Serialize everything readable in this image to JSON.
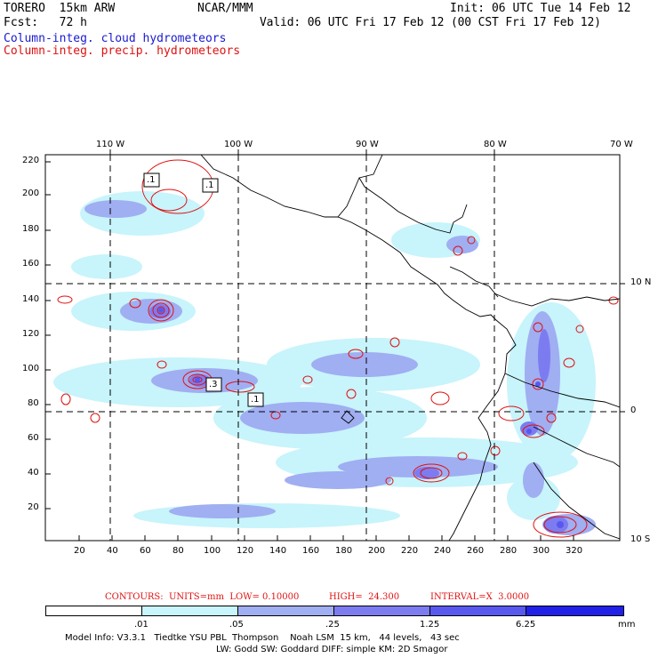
{
  "header": {
    "model": "TORERO  15km ARW",
    "center": "NCAR/MMM",
    "init": "Init: 06 UTC Tue 14 Feb 12",
    "fcst": "Fcst:   72 h",
    "valid": "Valid: 06 UTC Fri 17 Feb 12 (00 CST Fri 17 Feb 12)",
    "field_cloud": "Column-integ. cloud hydrometeors",
    "field_precip": "Column-integ. precip. hydrometeors"
  },
  "axes": {
    "top_lon_labels": [
      "110 W",
      "100 W",
      "90 W",
      "80 W",
      "70 W"
    ],
    "right_lat_labels": [
      "10 N",
      "0",
      "10 S"
    ],
    "left_y_labels": [
      "220",
      "200",
      "180",
      "160",
      "140",
      "120",
      "100",
      "80",
      "60",
      "40",
      "20"
    ],
    "bottom_x_labels": [
      "20",
      "40",
      "60",
      "80",
      "100",
      "120",
      "140",
      "160",
      "180",
      "200",
      "220",
      "240",
      "260",
      "280",
      "300",
      "320"
    ]
  },
  "contour_labels": [
    ".1",
    ".1",
    ".3",
    ".1"
  ],
  "contours_info": {
    "label": "CONTOURS:  UNITS=mm  LOW= 0.10000",
    "high": "HIGH=  24.300",
    "interval": "INTERVAL=X  3.0000"
  },
  "colorbar": {
    "units": "mm",
    "boundaries": [
      ".01",
      ".05",
      ".25",
      "1.25",
      "6.25"
    ],
    "colors": [
      "#ffffff",
      "#c8f4fb",
      "#a0aef2",
      "#7c7cf0",
      "#5858ee",
      "#2020e8"
    ]
  },
  "footer": {
    "line1": "Model Info: V3.3.1   Tiedtke YSU PBL  Thompson    Noah LSM  15 km,   44 levels,   43 sec",
    "line2": "LW: Godd SW: Goddard DIFF: simple KM: 2D Smagor"
  }
}
